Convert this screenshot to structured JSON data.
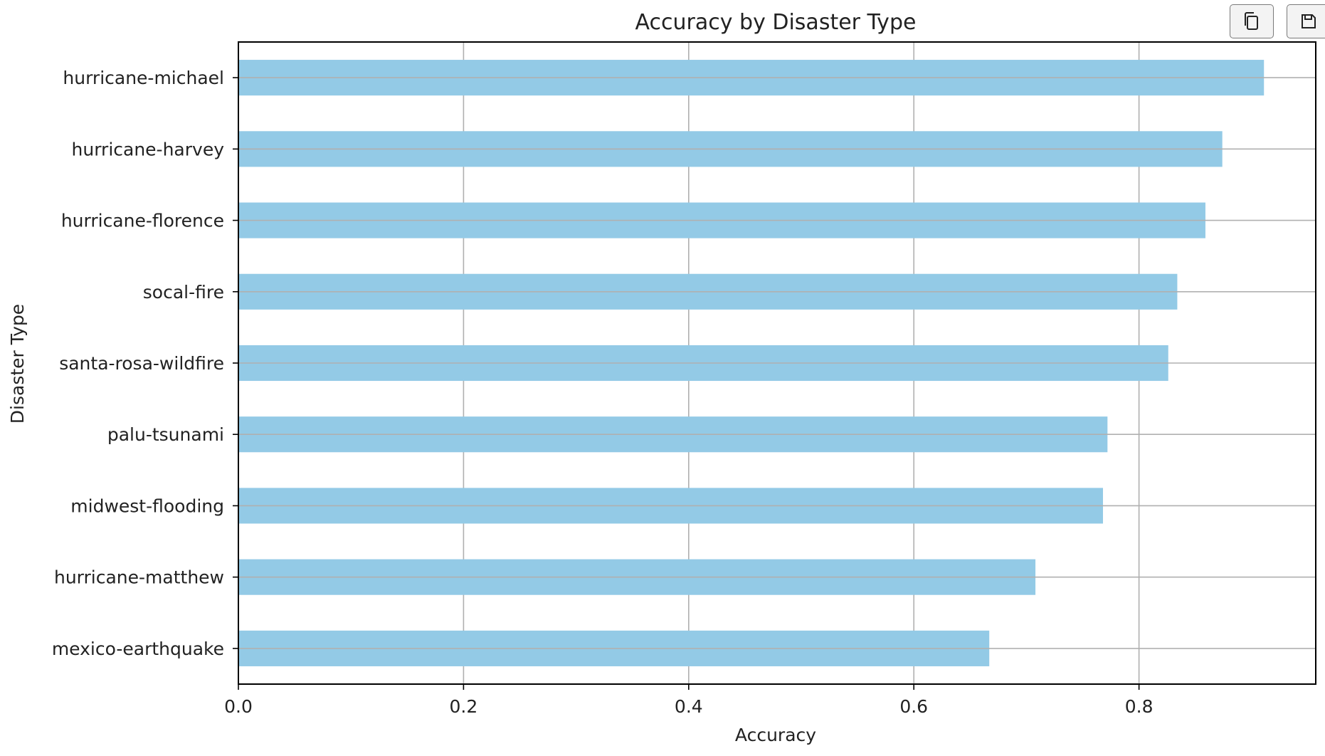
{
  "toolbar": {
    "copy_icon": "copy-icon",
    "save_icon": "save-icon"
  },
  "chart_data": {
    "type": "bar",
    "orientation": "horizontal",
    "title": "Accuracy by Disaster Type",
    "xlabel": "Accuracy",
    "ylabel": "Disaster Type",
    "categories": [
      "hurricane-michael",
      "hurricane-harvey",
      "hurricane-florence",
      "socal-fire",
      "santa-rosa-wildfire",
      "palu-tsunami",
      "midwest-flooding",
      "hurricane-matthew",
      "mexico-earthquake"
    ],
    "values": [
      0.911,
      0.874,
      0.859,
      0.834,
      0.826,
      0.772,
      0.768,
      0.708,
      0.667
    ],
    "xlim": [
      0,
      0.957
    ],
    "xticks": [
      "0.0",
      "0.2",
      "0.4",
      "0.6",
      "0.8"
    ],
    "grid": true,
    "bar_color": "#93cae6",
    "grid_color": "#b0b0b0",
    "axis_color": "#000000"
  }
}
